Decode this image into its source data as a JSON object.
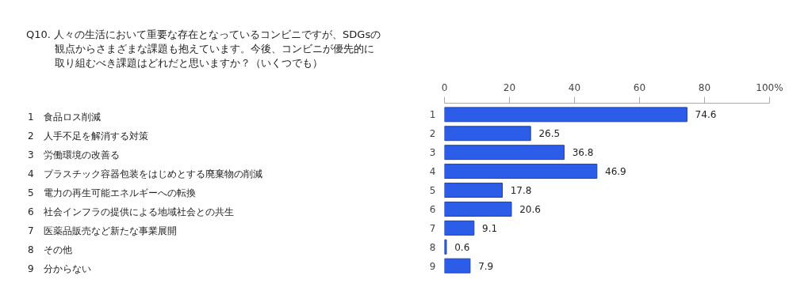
{
  "chart_data": {
    "type": "bar",
    "orientation": "horizontal",
    "title": "Q10. 人々の生活において重要な存在となっているコンビニですが、SDGsの観点からさまざまな課題も抱えています。今後、コンビニが優先的に取り組むべき課題はどれだと思いますか？（いくつでも）",
    "categories": [
      "1",
      "2",
      "3",
      "4",
      "5",
      "6",
      "7",
      "8",
      "9"
    ],
    "values": [
      74.6,
      26.5,
      36.8,
      46.9,
      17.8,
      20.6,
      9.1,
      0.6,
      7.9
    ],
    "color": "#2b5de8",
    "xlim": [
      0,
      100
    ],
    "xticks": [
      0,
      20,
      40,
      60,
      80,
      {
        "value": 100,
        "label": "100%"
      }
    ],
    "data_labels": true,
    "grid": false,
    "annotations": [
      "1　食品ロス削減",
      "2　人手不足を解消する対策",
      "3　労働環境の改善る",
      "4　プラスチック容器包装をはじめとする廃棄物の削減",
      "5　電力の再生可能エネルギーへの転換",
      "6　社会インフラの提供による地域社会との共生",
      "7　医薬品販売など新たな事業展開",
      "8　その他",
      "9　分からない"
    ]
  }
}
